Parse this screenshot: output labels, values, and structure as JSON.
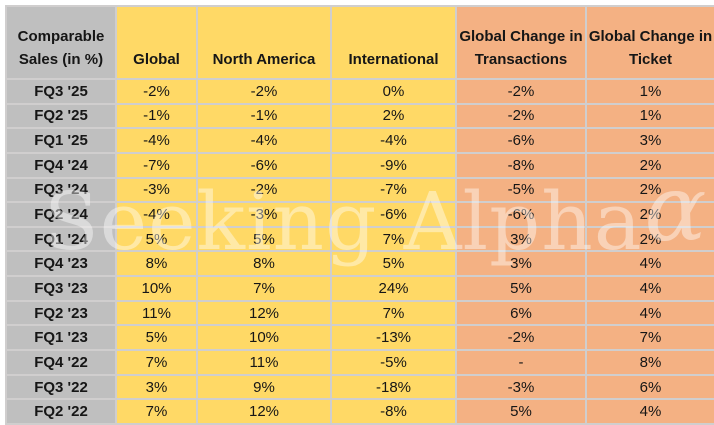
{
  "watermark": {
    "text": "Seeking Alpha",
    "alpha_symbol": "ɑ"
  },
  "colors": {
    "header_and_labels_gray": "#BFBFBF",
    "sales_columns_yellow": "#FFD966",
    "change_columns_orange": "#F4B183",
    "gridline": "#D0CECE",
    "text": "#161616",
    "watermark_white": "rgba(255,255,255,0.42)"
  },
  "chart_data": {
    "type": "table",
    "title": "Comparable Sales (in %)",
    "corner_header": "Comparable Sales (in %)",
    "columns": [
      {
        "label": "Global",
        "group": "yellow"
      },
      {
        "label": "North America",
        "group": "yellow"
      },
      {
        "label": "International",
        "group": "yellow"
      },
      {
        "label": "Global Change in Transactions",
        "group": "orange"
      },
      {
        "label": "Global Change in Ticket",
        "group": "orange"
      }
    ],
    "rows": [
      {
        "label": "FQ3 '25",
        "values": [
          "-2%",
          "-2%",
          "0%",
          "-2%",
          "1%"
        ]
      },
      {
        "label": "FQ2 '25",
        "values": [
          "-1%",
          "-1%",
          "2%",
          "-2%",
          "1%"
        ]
      },
      {
        "label": "FQ1 '25",
        "values": [
          "-4%",
          "-4%",
          "-4%",
          "-6%",
          "3%"
        ]
      },
      {
        "label": "FQ4 '24",
        "values": [
          "-7%",
          "-6%",
          "-9%",
          "-8%",
          "2%"
        ]
      },
      {
        "label": "FQ3 '24",
        "values": [
          "-3%",
          "-2%",
          "-7%",
          "-5%",
          "2%"
        ]
      },
      {
        "label": "FQ2 '24",
        "values": [
          "-4%",
          "-3%",
          "-6%",
          "-6%",
          "2%"
        ]
      },
      {
        "label": "FQ1 '24",
        "values": [
          "5%",
          "5%",
          "7%",
          "3%",
          "2%"
        ]
      },
      {
        "label": "FQ4 '23",
        "values": [
          "8%",
          "8%",
          "5%",
          "3%",
          "4%"
        ]
      },
      {
        "label": "FQ3 '23",
        "values": [
          "10%",
          "7%",
          "24%",
          "5%",
          "4%"
        ]
      },
      {
        "label": "FQ2 '23",
        "values": [
          "11%",
          "12%",
          "7%",
          "6%",
          "4%"
        ]
      },
      {
        "label": "FQ1 '23",
        "values": [
          "5%",
          "10%",
          "-13%",
          "-2%",
          "7%"
        ]
      },
      {
        "label": "FQ4 '22",
        "values": [
          "7%",
          "11%",
          "-5%",
          "-",
          "8%"
        ]
      },
      {
        "label": "FQ3 '22",
        "values": [
          "3%",
          "9%",
          "-18%",
          "-3%",
          "6%"
        ]
      },
      {
        "label": "FQ2 '22",
        "values": [
          "7%",
          "12%",
          "-8%",
          "5%",
          "4%"
        ]
      }
    ]
  }
}
